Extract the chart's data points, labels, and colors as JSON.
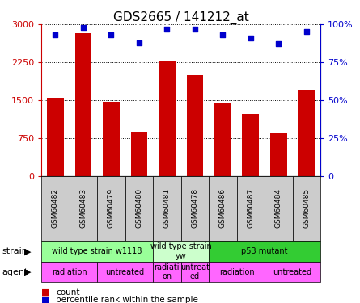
{
  "title": "GDS2665 / 141212_at",
  "samples": [
    "GSM60482",
    "GSM60483",
    "GSM60479",
    "GSM60480",
    "GSM60481",
    "GSM60478",
    "GSM60486",
    "GSM60487",
    "GSM60484",
    "GSM60485"
  ],
  "counts": [
    1550,
    2820,
    1460,
    870,
    2280,
    2000,
    1430,
    1230,
    850,
    1700
  ],
  "percentiles": [
    93,
    98,
    93,
    88,
    97,
    97,
    93,
    91,
    87,
    95
  ],
  "percentile_max": 100,
  "count_max": 3000,
  "count_ticks": [
    0,
    750,
    1500,
    2250,
    3000
  ],
  "percentile_ticks": [
    0,
    25,
    50,
    75,
    100
  ],
  "bar_color": "#cc0000",
  "dot_color": "#0000cc",
  "grid_color": "#000000",
  "left_axis_color": "#cc0000",
  "right_axis_color": "#0000cc",
  "strain_groups": [
    {
      "label": "wild type strain w1118",
      "start": 0,
      "end": 4,
      "color": "#99ff99"
    },
    {
      "label": "wild type strain\nyw",
      "start": 4,
      "end": 6,
      "color": "#ccffcc"
    },
    {
      "label": "p53 mutant",
      "start": 6,
      "end": 10,
      "color": "#33cc33"
    }
  ],
  "agent_groups": [
    {
      "label": "radiation",
      "start": 0,
      "end": 2,
      "color": "#ff66ff"
    },
    {
      "label": "untreated",
      "start": 2,
      "end": 4,
      "color": "#ff66ff"
    },
    {
      "label": "radiati\non",
      "start": 4,
      "end": 5,
      "color": "#ff66ff"
    },
    {
      "label": "untreat\ned",
      "start": 5,
      "end": 6,
      "color": "#ff66ff"
    },
    {
      "label": "radiation",
      "start": 6,
      "end": 8,
      "color": "#ff66ff"
    },
    {
      "label": "untreated",
      "start": 8,
      "end": 10,
      "color": "#ff66ff"
    }
  ],
  "legend_count_label": "count",
  "legend_percentile_label": "percentile rank within the sample",
  "strain_label": "strain",
  "agent_label": "agent",
  "tick_label_fontsize": 8,
  "title_fontsize": 11,
  "sample_cell_color": "#cccccc",
  "table_fontsize": 7,
  "label_fontsize": 8
}
